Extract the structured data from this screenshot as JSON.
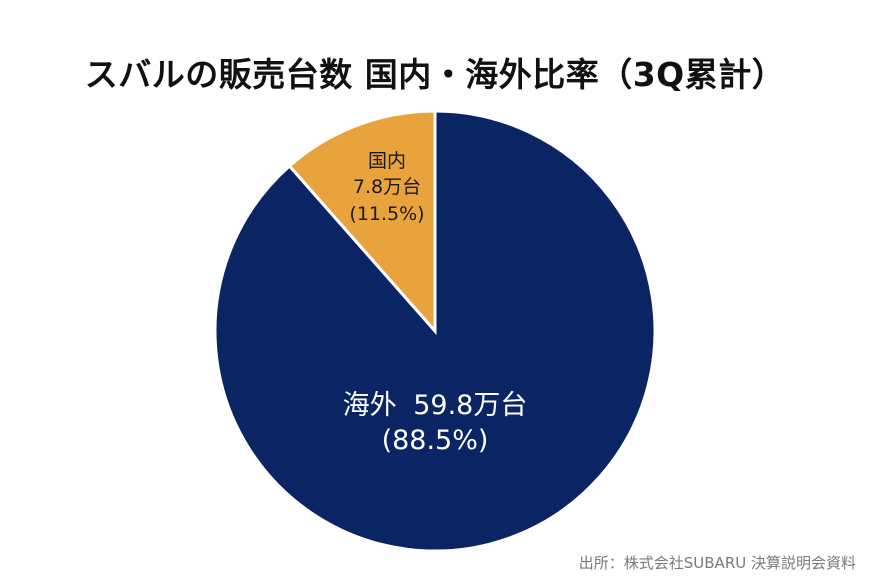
{
  "chart_data": {
    "type": "pie",
    "title": "スバルの販売台数 国内・海外比率（3Q累計）",
    "slices": [
      {
        "name": "国内",
        "value": 7.8,
        "unit": "万台",
        "percent": 11.5,
        "value_label": "7.8万台",
        "percent_label": "(11.5%)",
        "color": "#E8A33D"
      },
      {
        "name": "海外",
        "value": 59.8,
        "unit": "万台",
        "percent": 88.5,
        "value_label": "59.8万台",
        "percent_label": "(88.5%)",
        "color": "#0B2463"
      }
    ],
    "start_angle": "12 o'clock",
    "direction": "counter-clockwise for 国内"
  },
  "source": "出所：株式会社SUBARU 決算説明会資料",
  "colors": {
    "overseas": "#0B2463",
    "domestic": "#E8A33D",
    "slice_border": "#ffffff",
    "label_on_dark": "#ffffff",
    "label_on_light": "#1a1a1a"
  }
}
